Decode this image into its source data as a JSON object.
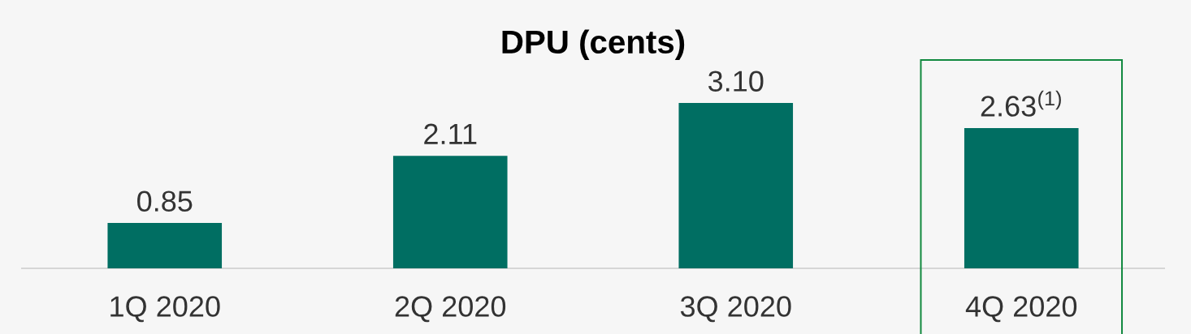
{
  "chart_data": {
    "type": "bar",
    "title": "DPU (cents)",
    "categories": [
      "1Q 2020",
      "2Q 2020",
      "3Q 2020",
      "4Q 2020"
    ],
    "values": [
      0.85,
      2.11,
      3.1,
      2.63
    ],
    "color": "#006e62",
    "value_labels": [
      "0.85",
      "2.11",
      "3.10",
      "2.63$^{(1)}$"
    ],
    "tick_labels": "x"
  }
}
